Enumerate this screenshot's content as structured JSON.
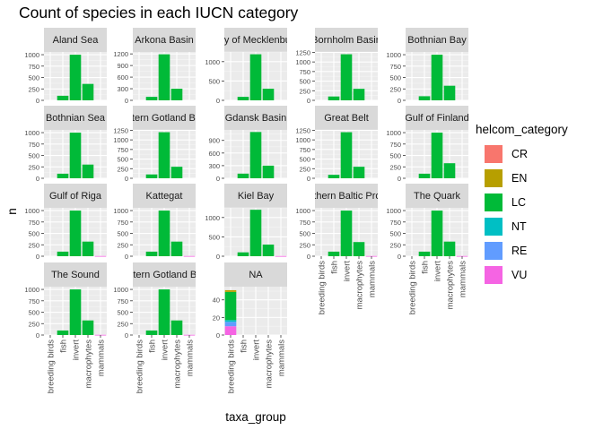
{
  "chart_data": {
    "type": "bar",
    "title": "Count of species in each IUCN category",
    "xlabel": "taxa_group",
    "ylabel": "n",
    "categories": [
      "breeding birds",
      "fish",
      "invert",
      "macrophytes",
      "mammals"
    ],
    "legend": {
      "title": "helcom_category",
      "placement": "right",
      "items": [
        {
          "name": "CR",
          "color": "#F8766D"
        },
        {
          "name": "EN",
          "color": "#B79F00"
        },
        {
          "name": "LC",
          "color": "#00BA38"
        },
        {
          "name": "NT",
          "color": "#00BFC4"
        },
        {
          "name": "RE",
          "color": "#619CFF"
        },
        {
          "name": "VU",
          "color": "#F564E3"
        }
      ]
    },
    "stack_order": [
      "CR",
      "EN",
      "LC",
      "NT",
      "RE",
      "VU"
    ],
    "grid": true,
    "panels": [
      {
        "label": "Aland Sea",
        "ticks": [
          0,
          250,
          500,
          750,
          1000
        ],
        "ylim": [
          0,
          1060
        ],
        "bars": [
          {},
          {
            "LC": 100
          },
          {
            "LC": 1000
          },
          {
            "LC": 360
          },
          {}
        ]
      },
      {
        "label": "Arkona Basin",
        "ticks": [
          0,
          300,
          600,
          900,
          1200
        ],
        "ylim": [
          0,
          1250
        ],
        "bars": [
          {},
          {
            "LC": 90
          },
          {
            "LC": 1190
          },
          {
            "LC": 300
          },
          {}
        ]
      },
      {
        "label": "Bay of Mecklenburg",
        "ticks": [
          0,
          500,
          1000
        ],
        "ylim": [
          0,
          1250
        ],
        "bars": [
          {},
          {
            "LC": 90
          },
          {
            "LC": 1190
          },
          {
            "LC": 300
          },
          {}
        ]
      },
      {
        "label": "Bornholm Basin",
        "ticks": [
          0,
          250,
          500,
          750,
          1000,
          1250
        ],
        "ylim": [
          0,
          1260
        ],
        "bars": [
          {},
          {
            "LC": 100
          },
          {
            "LC": 1200
          },
          {
            "LC": 300
          },
          {}
        ]
      },
      {
        "label": "Bothnian Bay",
        "ticks": [
          0,
          250,
          500,
          750,
          1000
        ],
        "ylim": [
          0,
          1060
        ],
        "bars": [
          {},
          {
            "LC": 90
          },
          {
            "LC": 1000
          },
          {
            "LC": 320
          },
          {}
        ]
      },
      {
        "label": "Bothnian Sea",
        "ticks": [
          0,
          250,
          500,
          750,
          1000
        ],
        "ylim": [
          0,
          1060
        ],
        "bars": [
          {},
          {
            "LC": 100
          },
          {
            "LC": 1000
          },
          {
            "LC": 300
          },
          {}
        ]
      },
      {
        "label": "Eastern Gotland Basin",
        "ticks": [
          0,
          250,
          500,
          750,
          1000,
          1250
        ],
        "ylim": [
          0,
          1260
        ],
        "bars": [
          {},
          {
            "LC": 100
          },
          {
            "LC": 1200
          },
          {
            "LC": 300
          },
          {}
        ]
      },
      {
        "label": "Gdansk Basin",
        "ticks": [
          0,
          300,
          600,
          900
        ],
        "ylim": [
          0,
          1150
        ],
        "bars": [
          {},
          {
            "LC": 110
          },
          {
            "LC": 1100
          },
          {
            "LC": 300
          },
          {}
        ]
      },
      {
        "label": "Great Belt",
        "ticks": [
          0,
          250,
          500,
          750,
          1000,
          1250
        ],
        "ylim": [
          0,
          1260
        ],
        "bars": [
          {},
          {
            "LC": 90
          },
          {
            "LC": 1200
          },
          {
            "LC": 300
          },
          {}
        ]
      },
      {
        "label": "Gulf of Finland",
        "ticks": [
          0,
          250,
          500,
          750,
          1000
        ],
        "ylim": [
          0,
          1060
        ],
        "bars": [
          {},
          {
            "LC": 100
          },
          {
            "LC": 1000
          },
          {
            "LC": 330
          },
          {}
        ]
      },
      {
        "label": "Gulf of Riga",
        "ticks": [
          0,
          250,
          500,
          750,
          1000
        ],
        "ylim": [
          0,
          1060
        ],
        "bars": [
          {},
          {
            "LC": 100
          },
          {
            "LC": 1000
          },
          {
            "LC": 320
          },
          {
            "VU": 5
          }
        ]
      },
      {
        "label": "Kattegat",
        "ticks": [
          0,
          250,
          500,
          750,
          1000
        ],
        "ylim": [
          0,
          1060
        ],
        "bars": [
          {},
          {
            "LC": 100
          },
          {
            "LC": 1000
          },
          {
            "LC": 320
          },
          {
            "VU": 5
          }
        ]
      },
      {
        "label": "Kiel Bay",
        "ticks": [
          0,
          500,
          1000
        ],
        "ylim": [
          0,
          1250
        ],
        "bars": [
          {},
          {
            "LC": 100
          },
          {
            "LC": 1200
          },
          {
            "LC": 300
          },
          {
            "VU": 5
          }
        ]
      },
      {
        "label": "Northern Baltic Proper",
        "ticks": [
          0,
          250,
          500,
          750,
          1000
        ],
        "ylim": [
          0,
          1060
        ],
        "bars": [
          {},
          {
            "LC": 100
          },
          {
            "LC": 1000
          },
          {
            "LC": 310
          },
          {
            "VU": 5
          }
        ]
      },
      {
        "label": "The Quark",
        "ticks": [
          0,
          250,
          500,
          750,
          1000
        ],
        "ylim": [
          0,
          1060
        ],
        "bars": [
          {},
          {
            "LC": 100
          },
          {
            "LC": 1000
          },
          {
            "LC": 320
          },
          {
            "VU": 5
          }
        ]
      },
      {
        "label": "The Sound",
        "ticks": [
          0,
          250,
          500,
          750,
          1000
        ],
        "ylim": [
          0,
          1060
        ],
        "bars": [
          {},
          {
            "LC": 100
          },
          {
            "LC": 1000
          },
          {
            "LC": 320
          },
          {
            "VU": 5
          }
        ]
      },
      {
        "label": "Western Gotland Basin",
        "ticks": [
          0,
          250,
          500,
          750,
          1000
        ],
        "ylim": [
          0,
          1060
        ],
        "bars": [
          {},
          {
            "LC": 100
          },
          {
            "LC": 1000
          },
          {
            "LC": 320
          },
          {
            "VU": 5
          }
        ]
      },
      {
        "label": "NA",
        "ticks": [
          0,
          20,
          40
        ],
        "ylim": [
          0,
          55
        ],
        "bars": [
          {
            "EN": 2,
            "LC": 32,
            "NT": 2,
            "RE": 5,
            "VU": 10
          },
          {},
          {},
          {},
          {}
        ]
      }
    ]
  }
}
